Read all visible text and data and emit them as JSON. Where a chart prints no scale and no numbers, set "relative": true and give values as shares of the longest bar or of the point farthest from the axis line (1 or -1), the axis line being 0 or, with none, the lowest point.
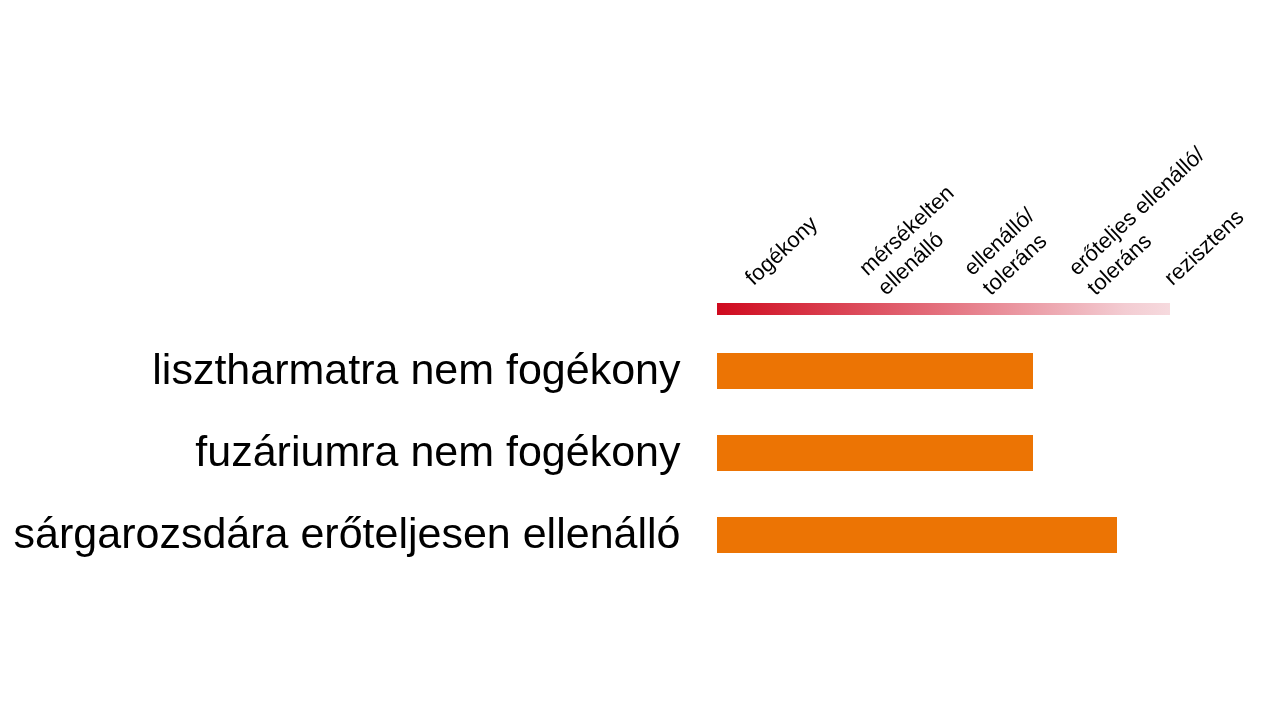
{
  "chart_data": {
    "type": "bar",
    "orientation": "horizontal",
    "relative": true,
    "categories": [
      "lisztharmatra nem fogékony",
      "fuzáriumra nem fogékony",
      "sárgarozsdára erőteljesen ellenálló"
    ],
    "values": [
      0.79,
      0.79,
      1
    ],
    "color": "#ec7404",
    "annotations": [
      "fogékony",
      "mérsékelten ellenálló",
      "ellenálló/ toleráns",
      "erőteljes ellenálló/ toleráns",
      "rezisztens"
    ]
  }
}
